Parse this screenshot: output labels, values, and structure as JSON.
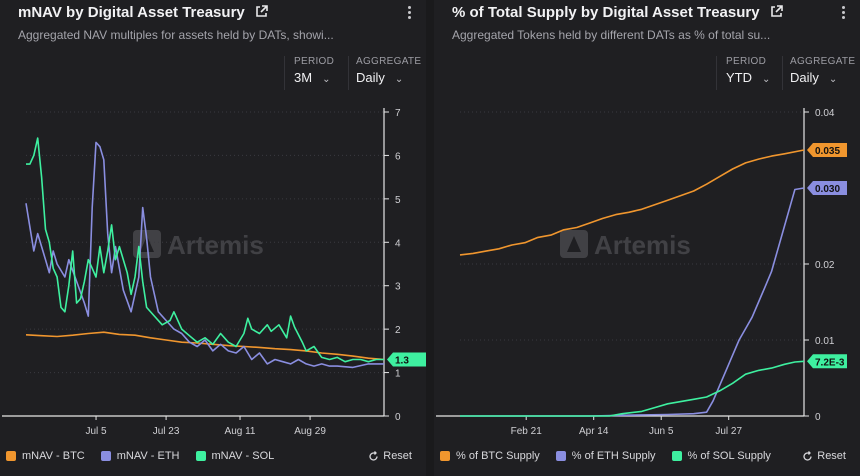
{
  "left": {
    "title": "mNAV by Digital Asset Treasury",
    "subtitle": "Aggregated NAV multiples for assets held by DATs, showi...",
    "period_label": "PERIOD",
    "period_value": "3M",
    "aggregate_label": "AGGREGATE",
    "aggregate_value": "Daily",
    "watermark": "Artemis",
    "reset_label": "Reset",
    "badge_value": "1.3",
    "legend": [
      {
        "label": "mNAV - BTC",
        "color": "#f0962e"
      },
      {
        "label": "mNAV - ETH",
        "color": "#8a8ee0"
      },
      {
        "label": "mNAV - SOL",
        "color": "#3ef0a0"
      }
    ]
  },
  "right": {
    "title": "% of Total Supply by Digital Asset Treasury",
    "subtitle": "Aggregated Tokens held by different DATs as % of total su...",
    "period_label": "PERIOD",
    "period_value": "YTD",
    "aggregate_label": "AGGREGATE",
    "aggregate_value": "Daily",
    "watermark": "Artemis",
    "reset_label": "Reset",
    "badges": [
      {
        "text": "0.035",
        "color": "#f0962e",
        "value": 0.035
      },
      {
        "text": "0.030",
        "color": "#8a8ee0",
        "value": 0.03
      },
      {
        "text": "7.2E-3",
        "color": "#3ef0a0",
        "value": 0.0072
      }
    ],
    "legend": [
      {
        "label": "% of BTC Supply",
        "color": "#f0962e"
      },
      {
        "label": "% of ETH Supply",
        "color": "#8a8ee0"
      },
      {
        "label": "% of SOL Supply",
        "color": "#3ef0a0"
      }
    ]
  },
  "chart_data": [
    {
      "type": "line",
      "x_ticks": [
        "Jul 5",
        "Jul 23",
        "Aug 11",
        "Aug 29"
      ],
      "x_tick_days": [
        18,
        36,
        55,
        73
      ],
      "xlim": [
        0,
        92
      ],
      "ylim": [
        0,
        7
      ],
      "y_ticks": [
        0,
        1,
        2,
        3,
        4,
        5,
        6,
        7
      ],
      "y_axis_side": "right",
      "legend_position": "bottom-left",
      "series": [
        {
          "name": "mNAV - BTC",
          "color": "#f0962e",
          "points": [
            [
              0,
              1.87
            ],
            [
              4,
              1.85
            ],
            [
              8,
              1.83
            ],
            [
              12,
              1.86
            ],
            [
              16,
              1.9
            ],
            [
              20,
              1.93
            ],
            [
              24,
              1.88
            ],
            [
              28,
              1.86
            ],
            [
              32,
              1.8
            ],
            [
              36,
              1.75
            ],
            [
              40,
              1.7
            ],
            [
              44,
              1.68
            ],
            [
              48,
              1.65
            ],
            [
              52,
              1.62
            ],
            [
              56,
              1.6
            ],
            [
              60,
              1.58
            ],
            [
              64,
              1.55
            ],
            [
              68,
              1.53
            ],
            [
              72,
              1.5
            ],
            [
              76,
              1.45
            ],
            [
              80,
              1.42
            ],
            [
              84,
              1.38
            ],
            [
              88,
              1.33
            ],
            [
              92,
              1.3
            ]
          ]
        },
        {
          "name": "mNAV - ETH",
          "color": "#8a8ee0",
          "points": [
            [
              0,
              4.9
            ],
            [
              2,
              3.8
            ],
            [
              3,
              4.2
            ],
            [
              5,
              3.6
            ],
            [
              6,
              3.3
            ],
            [
              7,
              3.8
            ],
            [
              8,
              3.5
            ],
            [
              10,
              3.2
            ],
            [
              11,
              3.6
            ],
            [
              13,
              3.1
            ],
            [
              15,
              2.6
            ],
            [
              16,
              2.3
            ],
            [
              17,
              4.8
            ],
            [
              18,
              6.3
            ],
            [
              19,
              6.2
            ],
            [
              20,
              5.9
            ],
            [
              21,
              4.2
            ],
            [
              22,
              3.3
            ],
            [
              23,
              3.9
            ],
            [
              25,
              2.9
            ],
            [
              27,
              2.4
            ],
            [
              29,
              3.2
            ],
            [
              30,
              4.8
            ],
            [
              31,
              4.1
            ],
            [
              32,
              3.2
            ],
            [
              34,
              2.4
            ],
            [
              36,
              2.2
            ],
            [
              38,
              2.0
            ],
            [
              40,
              1.9
            ],
            [
              42,
              1.7
            ],
            [
              44,
              1.6
            ],
            [
              46,
              1.75
            ],
            [
              48,
              1.5
            ],
            [
              50,
              1.65
            ],
            [
              52,
              1.5
            ],
            [
              54,
              1.45
            ],
            [
              56,
              1.6
            ],
            [
              58,
              1.3
            ],
            [
              60,
              1.45
            ],
            [
              62,
              1.2
            ],
            [
              64,
              1.3
            ],
            [
              66,
              1.25
            ],
            [
              68,
              1.2
            ],
            [
              70,
              1.3
            ],
            [
              72,
              1.2
            ],
            [
              74,
              1.15
            ],
            [
              76,
              1.2
            ],
            [
              78,
              1.15
            ],
            [
              80,
              1.15
            ],
            [
              84,
              1.12
            ],
            [
              88,
              1.2
            ],
            [
              92,
              1.2
            ]
          ]
        },
        {
          "name": "mNAV - SOL",
          "color": "#3ef0a0",
          "points": [
            [
              0,
              5.8
            ],
            [
              1,
              5.8
            ],
            [
              2,
              6.0
            ],
            [
              3,
              6.4
            ],
            [
              4,
              5.5
            ],
            [
              5,
              4.3
            ],
            [
              6,
              4.0
            ],
            [
              7,
              3.4
            ],
            [
              8,
              3.2
            ],
            [
              9,
              2.5
            ],
            [
              10,
              2.4
            ],
            [
              11,
              3.0
            ],
            [
              12,
              3.8
            ],
            [
              13,
              2.6
            ],
            [
              14,
              2.7
            ],
            [
              15,
              3.1
            ],
            [
              16,
              3.6
            ],
            [
              17,
              3.4
            ],
            [
              18,
              3.2
            ],
            [
              19,
              3.9
            ],
            [
              20,
              3.3
            ],
            [
              21,
              3.8
            ],
            [
              22,
              4.4
            ],
            [
              23,
              3.6
            ],
            [
              24,
              3.9
            ],
            [
              26,
              3.3
            ],
            [
              27,
              2.8
            ],
            [
              28,
              3.2
            ],
            [
              29,
              3.9
            ],
            [
              30,
              3.1
            ],
            [
              31,
              2.5
            ],
            [
              33,
              2.3
            ],
            [
              35,
              2.1
            ],
            [
              37,
              2.2
            ],
            [
              38,
              2.4
            ],
            [
              40,
              2.0
            ],
            [
              42,
              1.85
            ],
            [
              44,
              1.7
            ],
            [
              46,
              1.8
            ],
            [
              48,
              1.65
            ],
            [
              50,
              1.9
            ],
            [
              52,
              1.7
            ],
            [
              54,
              1.6
            ],
            [
              56,
              1.9
            ],
            [
              57,
              2.25
            ],
            [
              58,
              2.0
            ],
            [
              60,
              1.9
            ],
            [
              62,
              2.1
            ],
            [
              63,
              1.95
            ],
            [
              65,
              2.1
            ],
            [
              67,
              1.8
            ],
            [
              68,
              2.3
            ],
            [
              69,
              2.05
            ],
            [
              71,
              1.7
            ],
            [
              72,
              1.5
            ],
            [
              74,
              1.6
            ],
            [
              76,
              1.35
            ],
            [
              78,
              1.3
            ],
            [
              80,
              1.35
            ],
            [
              82,
              1.25
            ],
            [
              84,
              1.3
            ],
            [
              86,
              1.3
            ],
            [
              88,
              1.25
            ],
            [
              90,
              1.3
            ],
            [
              92,
              1.3
            ]
          ]
        }
      ]
    },
    {
      "type": "line",
      "x_ticks": [
        "Feb 21",
        "Apr 14",
        "Jun 5",
        "Jul 27"
      ],
      "x_tick_days": [
        51,
        103,
        155,
        207
      ],
      "xlim": [
        0,
        265
      ],
      "ylim": [
        0,
        0.04
      ],
      "y_ticks": [
        0,
        0.01,
        0.02,
        0.04
      ],
      "y_tick_labels": [
        "0",
        "0.01",
        "0.02",
        "0.04"
      ],
      "y_axis_side": "right",
      "legend_position": "bottom-left",
      "series": [
        {
          "name": "% of BTC Supply",
          "color": "#f0962e",
          "points": [
            [
              0,
              0.0212
            ],
            [
              10,
              0.0214
            ],
            [
              20,
              0.0217
            ],
            [
              30,
              0.022
            ],
            [
              40,
              0.0225
            ],
            [
              50,
              0.0228
            ],
            [
              60,
              0.0235
            ],
            [
              70,
              0.0238
            ],
            [
              80,
              0.0245
            ],
            [
              90,
              0.0248
            ],
            [
              100,
              0.0254
            ],
            [
              110,
              0.026
            ],
            [
              120,
              0.0265
            ],
            [
              130,
              0.0268
            ],
            [
              140,
              0.0272
            ],
            [
              150,
              0.0278
            ],
            [
              160,
              0.0284
            ],
            [
              170,
              0.029
            ],
            [
              180,
              0.0296
            ],
            [
              190,
              0.0305
            ],
            [
              200,
              0.0315
            ],
            [
              210,
              0.0325
            ],
            [
              220,
              0.0333
            ],
            [
              230,
              0.0338
            ],
            [
              240,
              0.0342
            ],
            [
              250,
              0.0345
            ],
            [
              265,
              0.035
            ]
          ]
        },
        {
          "name": "% of ETH Supply",
          "color": "#8a8ee0",
          "points": [
            [
              0,
              0
            ],
            [
              100,
              0
            ],
            [
              130,
              0.0001
            ],
            [
              160,
              0.0002
            ],
            [
              180,
              0.0003
            ],
            [
              190,
              0.0005
            ],
            [
              195,
              0.002
            ],
            [
              200,
              0.004
            ],
            [
              205,
              0.006
            ],
            [
              210,
              0.008
            ],
            [
              215,
              0.01
            ],
            [
              220,
              0.0115
            ],
            [
              225,
              0.013
            ],
            [
              230,
              0.015
            ],
            [
              235,
              0.017
            ],
            [
              240,
              0.019
            ],
            [
              245,
              0.022
            ],
            [
              250,
              0.025
            ],
            [
              255,
              0.028
            ],
            [
              258,
              0.0298
            ],
            [
              265,
              0.03
            ]
          ]
        },
        {
          "name": "% of SOL Supply",
          "color": "#3ef0a0",
          "points": [
            [
              0,
              0
            ],
            [
              115,
              0
            ],
            [
              125,
              0.0003
            ],
            [
              140,
              0.0006
            ],
            [
              150,
              0.0011
            ],
            [
              160,
              0.0016
            ],
            [
              170,
              0.0019
            ],
            [
              180,
              0.0022
            ],
            [
              190,
              0.0025
            ],
            [
              200,
              0.0033
            ],
            [
              210,
              0.0043
            ],
            [
              220,
              0.0055
            ],
            [
              230,
              0.006
            ],
            [
              240,
              0.0063
            ],
            [
              250,
              0.0068
            ],
            [
              258,
              0.0071
            ],
            [
              265,
              0.0072
            ]
          ]
        }
      ]
    }
  ]
}
